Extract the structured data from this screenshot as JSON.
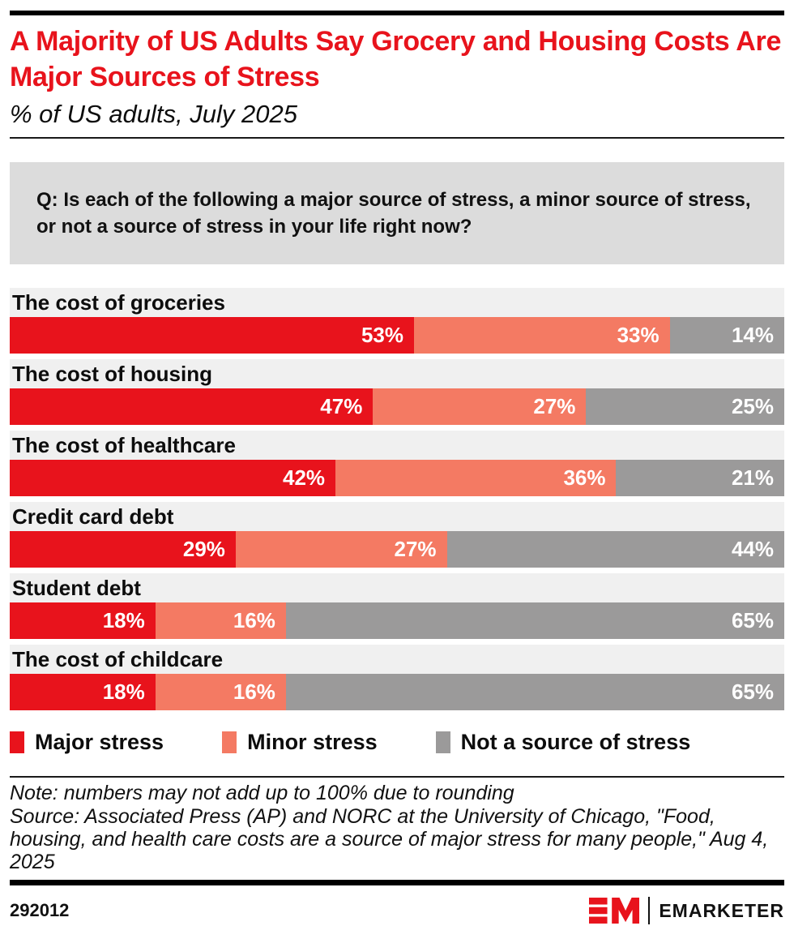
{
  "header": {
    "title": "A Majority of US Adults Say Grocery and Housing Costs Are Major Sources of Stress",
    "subtitle": "% of US adults, July 2025"
  },
  "question": "Q: Is each of the following a major source of stress, a minor source of stress, or not a source of stress in your life right now?",
  "chart_data": {
    "type": "bar",
    "variant": "stacked-horizontal-100pct",
    "value_suffix": "%",
    "categories": [
      "The cost of groceries",
      "The cost of housing",
      "The cost of healthcare",
      "Credit card debt",
      "Student debt",
      "The cost of childcare"
    ],
    "series": [
      {
        "name": "Major stress",
        "color": "#e8131c",
        "values": [
          53,
          47,
          42,
          29,
          18,
          18
        ]
      },
      {
        "name": "Minor stress",
        "color": "#f47a63",
        "values": [
          33,
          27,
          36,
          27,
          16,
          16
        ]
      },
      {
        "name": "Not a source of stress",
        "color": "#9b9a9a",
        "values": [
          14,
          25,
          21,
          44,
          65,
          65
        ]
      }
    ],
    "legend_position": "bottom",
    "grid": false,
    "row_label_bg": "#f0f0f0"
  },
  "footer": {
    "note": "Note: numbers may not add up to 100% due to rounding",
    "source": "Source: Associated Press (AP) and NORC at the University of Chicago, \"Food, housing, and health care costs are a source of major stress for many people,\" Aug 4, 2025",
    "chart_id": "292012",
    "brand": "EMARKETER",
    "brand_color": "#e8131c"
  }
}
